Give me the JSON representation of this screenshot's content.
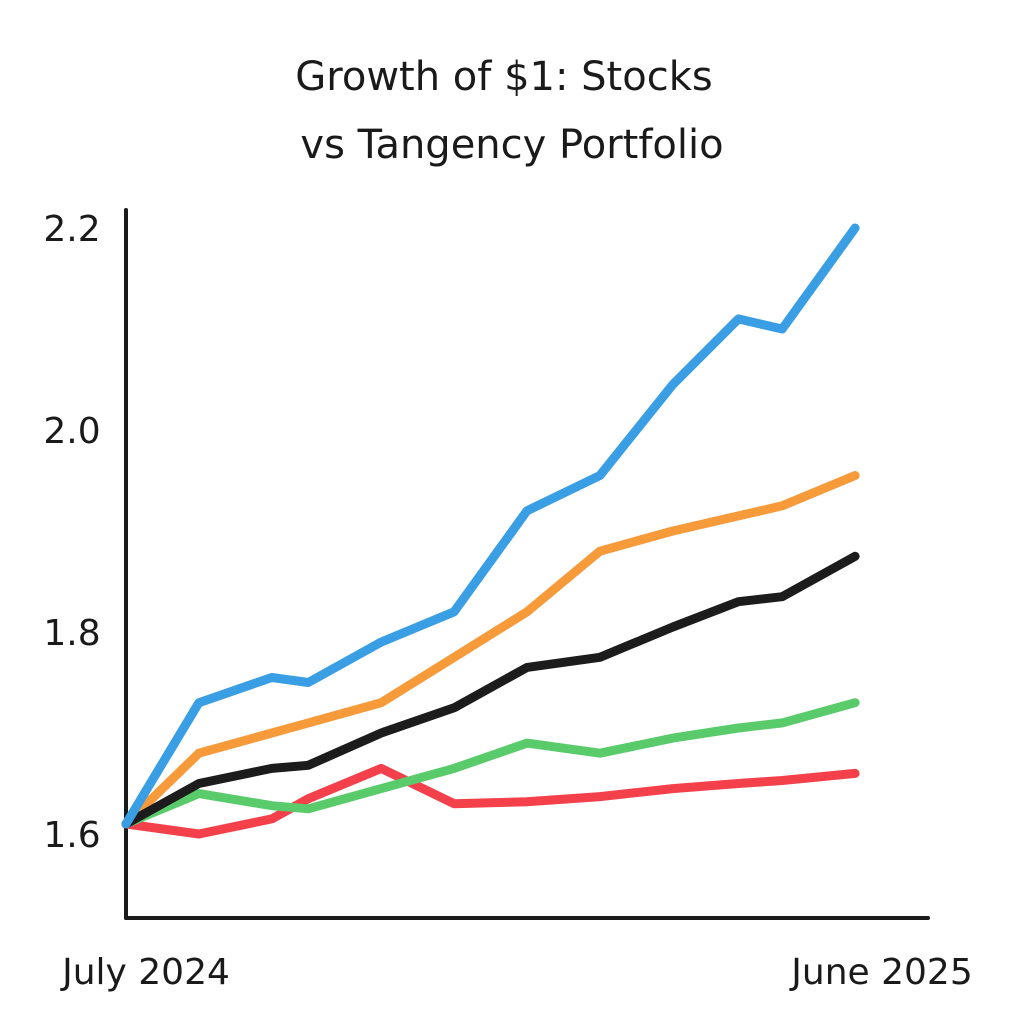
{
  "chart_data": {
    "type": "line",
    "title": "Growth of $1: Stocks vs Tangency Portfolio",
    "title_lines": [
      "Growth of $1: Stocks",
      "vs Tangency Portfolio"
    ],
    "xlabel": "",
    "ylabel": "",
    "x_tick_labels": [
      "July 2024",
      "June 2025"
    ],
    "y_ticks": [
      1.6,
      1.8,
      2.0,
      2.2
    ],
    "y_tick_labels": [
      "1.6",
      "1.8",
      "2.0",
      "2.2"
    ],
    "ylim": [
      1.51,
      2.22
    ],
    "xlim": [
      0,
      11
    ],
    "grid": false,
    "legend": "none",
    "x": [
      0,
      1,
      2,
      2.5,
      3.5,
      4.5,
      5.5,
      6.5,
      7.5,
      8.4,
      9,
      10
    ],
    "series": [
      {
        "name": "blue",
        "color": "#3a9ee4",
        "values": [
          1.61,
          1.73,
          1.755,
          1.75,
          1.79,
          1.82,
          1.92,
          1.955,
          2.045,
          2.11,
          2.1,
          2.2
        ]
      },
      {
        "name": "orange",
        "color": "#f79a3a",
        "values": [
          1.61,
          1.68,
          1.7,
          1.71,
          1.73,
          1.775,
          1.82,
          1.88,
          1.9,
          1.915,
          1.925,
          1.955
        ]
      },
      {
        "name": "black",
        "color": "#1c1c1c",
        "values": [
          1.61,
          1.65,
          1.665,
          1.668,
          1.7,
          1.725,
          1.765,
          1.775,
          1.805,
          1.83,
          1.835,
          1.875
        ]
      },
      {
        "name": "green",
        "color": "#5acb6a",
        "values": [
          1.61,
          1.64,
          1.628,
          1.625,
          1.645,
          1.665,
          1.69,
          1.68,
          1.695,
          1.705,
          1.71,
          1.73
        ]
      },
      {
        "name": "red",
        "color": "#f4404a",
        "values": [
          1.61,
          1.6,
          1.615,
          1.635,
          1.665,
          1.63,
          1.632,
          1.637,
          1.645,
          1.65,
          1.653,
          1.66
        ]
      }
    ]
  }
}
